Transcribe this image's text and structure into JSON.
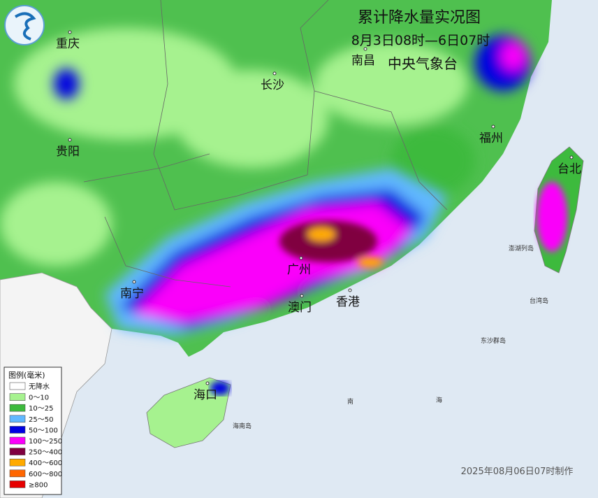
{
  "header": {
    "title": "累计降水量实况图",
    "period": "8月3日08时—6日07时",
    "agency": "中央气象台"
  },
  "cities": [
    "重庆",
    "长沙",
    "南昌",
    "贵阳",
    "福州",
    "台北",
    "南宁",
    "广州",
    "澳门",
    "香港",
    "海口"
  ],
  "places": [
    "澎湖列岛",
    "台湾岛",
    "东沙群岛",
    "海南岛",
    "南",
    "海"
  ],
  "legend": {
    "title": "图例(毫米)",
    "items": [
      {
        "label": "无降水",
        "color": "#ffffff"
      },
      {
        "label": "0～10",
        "color": "#a6f28f"
      },
      {
        "label": "10～25",
        "color": "#3dba3d"
      },
      {
        "label": "25～50",
        "color": "#61b8ff"
      },
      {
        "label": "50～100",
        "color": "#0000e1"
      },
      {
        "label": "100～250",
        "color": "#fa00fa"
      },
      {
        "label": "250～400",
        "color": "#800040"
      },
      {
        "label": "400～600",
        "color": "#ffaa00"
      },
      {
        "label": "600～800",
        "color": "#ff6600"
      },
      {
        "label": "≥800",
        "color": "#e60000"
      }
    ]
  },
  "footer": "2025年08月06日07时制作"
}
